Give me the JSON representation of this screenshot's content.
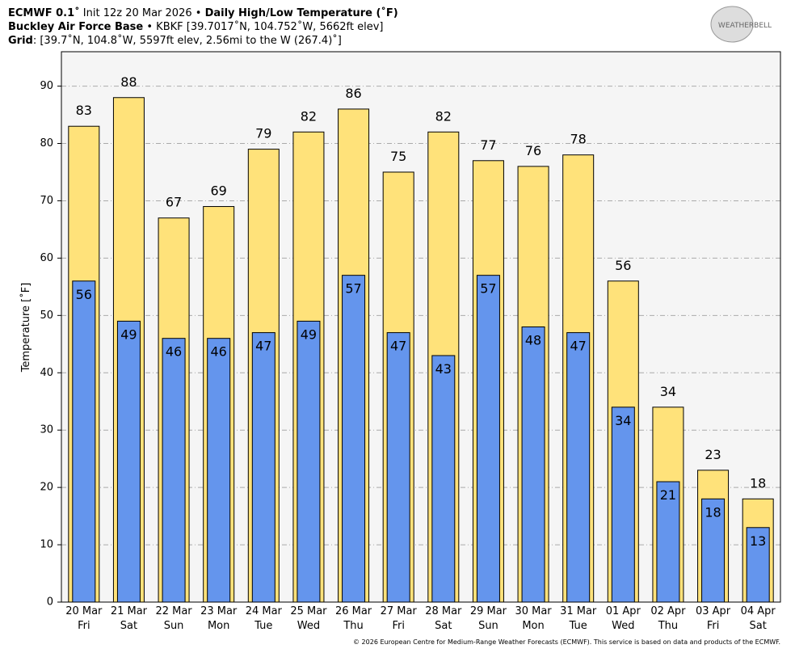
{
  "header": {
    "model": "ECMWF 0.1˚",
    "init": "Init 12z 20 Mar 2026",
    "separator": "•",
    "product": "Daily High/Low Temperature (˚F)",
    "station": "Buckley Air Force Base",
    "station_info": "• KBKF [39.7017˚N, 104.752˚W, 5662ft elev]",
    "grid_label": "Grid",
    "grid_info": ": [39.7˚N, 104.8˚W, 5597ft elev, 2.56mi to the W (267.4)˚]",
    "logo": "WEATHERBELL"
  },
  "footer": "© 2026 European Centre for Medium-Range Weather Forecasts (ECMWF). This service is based on data and products of the ECMWF.",
  "chart_data": {
    "type": "bar",
    "ylabel": "Temperature [˚F]",
    "categories": [
      "20 Mar",
      "21 Mar",
      "22 Mar",
      "23 Mar",
      "24 Mar",
      "25 Mar",
      "26 Mar",
      "27 Mar",
      "28 Mar",
      "29 Mar",
      "30 Mar",
      "31 Mar",
      "01 Apr",
      "02 Apr",
      "03 Apr",
      "04 Apr"
    ],
    "weekdays": [
      "Fri",
      "Sat",
      "Sun",
      "Mon",
      "Tue",
      "Wed",
      "Thu",
      "Fri",
      "Sat",
      "Sun",
      "Mon",
      "Tue",
      "Wed",
      "Thu",
      "Fri",
      "Sat"
    ],
    "series": [
      {
        "name": "High",
        "color": "#ffe27a",
        "values": [
          83,
          88,
          67,
          69,
          79,
          82,
          86,
          75,
          82,
          77,
          76,
          78,
          56,
          34,
          23,
          18
        ]
      },
      {
        "name": "Low",
        "color": "#6495ed",
        "values": [
          56,
          49,
          46,
          46,
          47,
          49,
          57,
          47,
          43,
          57,
          48,
          47,
          34,
          21,
          18,
          13
        ]
      }
    ],
    "ylim": [
      0,
      96
    ],
    "yticks": [
      0,
      10,
      20,
      30,
      40,
      50,
      60,
      70,
      80,
      90
    ],
    "grid": true
  }
}
